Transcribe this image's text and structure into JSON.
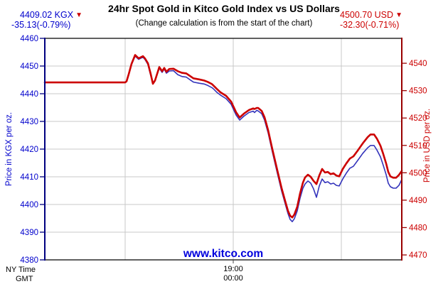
{
  "header": {
    "title": "24hr Spot Gold in Kitco Gold Index vs US Dollars",
    "subtitle": "(Change calculation is from the start of the chart)",
    "kgx_quote": {
      "value_label": "4409.02 KGX",
      "arrow_glyph": "▼",
      "change_label": "-35.13(-0.79%)"
    },
    "usd_quote": {
      "value_label": "4500.70 USD",
      "arrow_glyph": "▼",
      "change_label": "-32.30(-0.71%)"
    }
  },
  "footer": {
    "ny_time_label": "NY Time",
    "gmt_label": "GMT",
    "time_ny": "19:00",
    "time_gmt": "00:00"
  },
  "watermark": {
    "text": "www.kitco.com"
  },
  "colors": {
    "kgx_line": "#3333bb",
    "usd_line": "#cc0000",
    "kgx_text": "#0000cc",
    "usd_text": "#cc0000",
    "left_axis_line": "#000080",
    "right_axis_line": "#990000",
    "gridline": "#c9c9c9",
    "border": "#000000",
    "watermark": "#0000dd",
    "arrow": "#cc0000"
  },
  "chart_data": {
    "type": "line",
    "title": "24hr Spot Gold in Kitco Gold Index vs US Dollars",
    "subtitle": "(Change calculation is from the start of the chart)",
    "x_axis": {
      "min": 0,
      "max": 502,
      "gridlines_t": [
        113,
        265,
        417
      ],
      "labeled_gridline_t": 265,
      "label_ny": "19:00",
      "label_gmt": "00:00"
    },
    "left_axis": {
      "label": "Price in KGX per oz.",
      "min": 4380,
      "max": 4460,
      "tick_step": 10,
      "ticks": [
        4460,
        4450,
        4440,
        4430,
        4420,
        4410,
        4400,
        4390,
        4380
      ]
    },
    "right_axis": {
      "label": "Price in USD per oz.",
      "min": 4468.2,
      "max": 4549.1,
      "tick_step": 10,
      "ticks": [
        4540,
        4530,
        4520,
        4510,
        4500,
        4490,
        4480,
        4470
      ]
    },
    "grid": true,
    "legend": false,
    "series": [
      {
        "name": "KGX",
        "axis": "left",
        "color_key": "kgx_line",
        "width": 1.6,
        "start_value": 4444.15,
        "end_value": 4409.02,
        "change": "-35.13(-0.79%)",
        "points": [
          [
            0,
            4444.15
          ],
          [
            113,
            4444.15
          ],
          [
            115,
            4444.5
          ],
          [
            118,
            4447.0
          ],
          [
            122,
            4450.5
          ],
          [
            127,
            4453.6
          ],
          [
            132,
            4452.4
          ],
          [
            138,
            4453.2
          ],
          [
            141,
            4452.3
          ],
          [
            145,
            4450.6
          ],
          [
            149,
            4446.5
          ],
          [
            152,
            4443.9
          ],
          [
            155,
            4444.9
          ],
          [
            161,
            4449.2
          ],
          [
            165,
            4447.7
          ],
          [
            168,
            4448.9
          ],
          [
            171,
            4447.4
          ],
          [
            175,
            4448.2
          ],
          [
            181,
            4448.3
          ],
          [
            187,
            4446.9
          ],
          [
            193,
            4446.2
          ],
          [
            199,
            4446.0
          ],
          [
            205,
            4444.9
          ],
          [
            209,
            4444.2
          ],
          [
            217,
            4443.8
          ],
          [
            224,
            4443.5
          ],
          [
            229,
            4443.0
          ],
          [
            235,
            4442.2
          ],
          [
            237,
            4441.8
          ],
          [
            242,
            4440.5
          ],
          [
            247,
            4439.5
          ],
          [
            255,
            4438.2
          ],
          [
            262,
            4436.2
          ],
          [
            269,
            4432.3
          ],
          [
            274,
            4430.5
          ],
          [
            280,
            4431.9
          ],
          [
            287,
            4433.2
          ],
          [
            293,
            4433.7
          ],
          [
            295,
            4433.2
          ],
          [
            298,
            4434.0
          ],
          [
            300,
            4433.8
          ],
          [
            305,
            4432.8
          ],
          [
            309,
            4430.5
          ],
          [
            314,
            4425.9
          ],
          [
            320,
            4419.0
          ],
          [
            327,
            4411.3
          ],
          [
            333,
            4404.9
          ],
          [
            338,
            4400.3
          ],
          [
            342,
            4396.7
          ],
          [
            345,
            4394.6
          ],
          [
            348,
            4393.8
          ],
          [
            351,
            4394.9
          ],
          [
            355,
            4397.7
          ],
          [
            359,
            4402.3
          ],
          [
            363,
            4405.9
          ],
          [
            366,
            4407.4
          ],
          [
            370,
            4408.5
          ],
          [
            374,
            4407.7
          ],
          [
            378,
            4405.6
          ],
          [
            382,
            4402.6
          ],
          [
            386,
            4406.7
          ],
          [
            390,
            4409.2
          ],
          [
            394,
            4407.9
          ],
          [
            398,
            4408.2
          ],
          [
            402,
            4407.4
          ],
          [
            406,
            4407.7
          ],
          [
            410,
            4406.9
          ],
          [
            414,
            4406.7
          ],
          [
            419,
            4409.2
          ],
          [
            424,
            4411.3
          ],
          [
            429,
            4413.1
          ],
          [
            434,
            4413.8
          ],
          [
            440,
            4415.9
          ],
          [
            447,
            4418.4
          ],
          [
            454,
            4420.5
          ],
          [
            458,
            4421.3
          ],
          [
            463,
            4421.3
          ],
          [
            467,
            4419.7
          ],
          [
            472,
            4417.2
          ],
          [
            476,
            4414.1
          ],
          [
            480,
            4410.8
          ],
          [
            483,
            4407.7
          ],
          [
            486,
            4406.4
          ],
          [
            490,
            4405.9
          ],
          [
            494,
            4405.9
          ],
          [
            498,
            4406.9
          ],
          [
            502,
            4409.02
          ]
        ]
      },
      {
        "name": "USD",
        "axis": "right",
        "color_key": "usd_line",
        "width": 2.6,
        "start_value": 4533.0,
        "end_value": 4500.7,
        "change": "-32.30(-0.71%)",
        "points": [
          [
            0,
            4533.0
          ],
          [
            113,
            4533.0
          ],
          [
            115,
            4533.4
          ],
          [
            118,
            4536.0
          ],
          [
            122,
            4539.8
          ],
          [
            127,
            4543.0
          ],
          [
            132,
            4541.8
          ],
          [
            138,
            4542.6
          ],
          [
            141,
            4541.7
          ],
          [
            145,
            4540.0
          ],
          [
            149,
            4536.0
          ],
          [
            152,
            4532.5
          ],
          [
            155,
            4533.7
          ],
          [
            161,
            4538.6
          ],
          [
            165,
            4537.1
          ],
          [
            168,
            4538.3
          ],
          [
            171,
            4536.9
          ],
          [
            175,
            4537.9
          ],
          [
            181,
            4538.0
          ],
          [
            187,
            4537.1
          ],
          [
            193,
            4536.5
          ],
          [
            199,
            4536.3
          ],
          [
            205,
            4535.2
          ],
          [
            209,
            4534.5
          ],
          [
            217,
            4534.1
          ],
          [
            224,
            4533.7
          ],
          [
            229,
            4533.2
          ],
          [
            235,
            4532.4
          ],
          [
            237,
            4531.9
          ],
          [
            242,
            4530.6
          ],
          [
            247,
            4529.4
          ],
          [
            255,
            4528.1
          ],
          [
            262,
            4526.0
          ],
          [
            269,
            4522.1
          ],
          [
            274,
            4520.2
          ],
          [
            280,
            4521.6
          ],
          [
            287,
            4522.9
          ],
          [
            293,
            4523.5
          ],
          [
            295,
            4523.3
          ],
          [
            298,
            4523.7
          ],
          [
            300,
            4523.7
          ],
          [
            305,
            4522.6
          ],
          [
            309,
            4520.3
          ],
          [
            314,
            4515.6
          ],
          [
            320,
            4508.6
          ],
          [
            327,
            4500.9
          ],
          [
            333,
            4494.4
          ],
          [
            338,
            4489.7
          ],
          [
            342,
            4486.1
          ],
          [
            345,
            4484.3
          ],
          [
            348,
            4483.7
          ],
          [
            351,
            4484.8
          ],
          [
            355,
            4487.6
          ],
          [
            359,
            4492.5
          ],
          [
            363,
            4496.4
          ],
          [
            366,
            4498.3
          ],
          [
            370,
            4499.3
          ],
          [
            374,
            4498.5
          ],
          [
            378,
            4497.0
          ],
          [
            382,
            4495.9
          ],
          [
            386,
            4499.0
          ],
          [
            390,
            4501.4
          ],
          [
            394,
            4500.1
          ],
          [
            398,
            4500.3
          ],
          [
            402,
            4499.5
          ],
          [
            406,
            4499.8
          ],
          [
            410,
            4499.0
          ],
          [
            414,
            4498.7
          ],
          [
            419,
            4501.4
          ],
          [
            424,
            4503.4
          ],
          [
            429,
            4505.2
          ],
          [
            434,
            4506.0
          ],
          [
            440,
            4508.1
          ],
          [
            447,
            4510.7
          ],
          [
            454,
            4513.0
          ],
          [
            458,
            4514.0
          ],
          [
            463,
            4514.0
          ],
          [
            467,
            4512.5
          ],
          [
            472,
            4509.9
          ],
          [
            476,
            4506.8
          ],
          [
            480,
            4503.4
          ],
          [
            483,
            4500.3
          ],
          [
            486,
            4498.7
          ],
          [
            490,
            4498.2
          ],
          [
            494,
            4498.2
          ],
          [
            498,
            4499.2
          ],
          [
            502,
            4500.7
          ]
        ]
      }
    ]
  }
}
